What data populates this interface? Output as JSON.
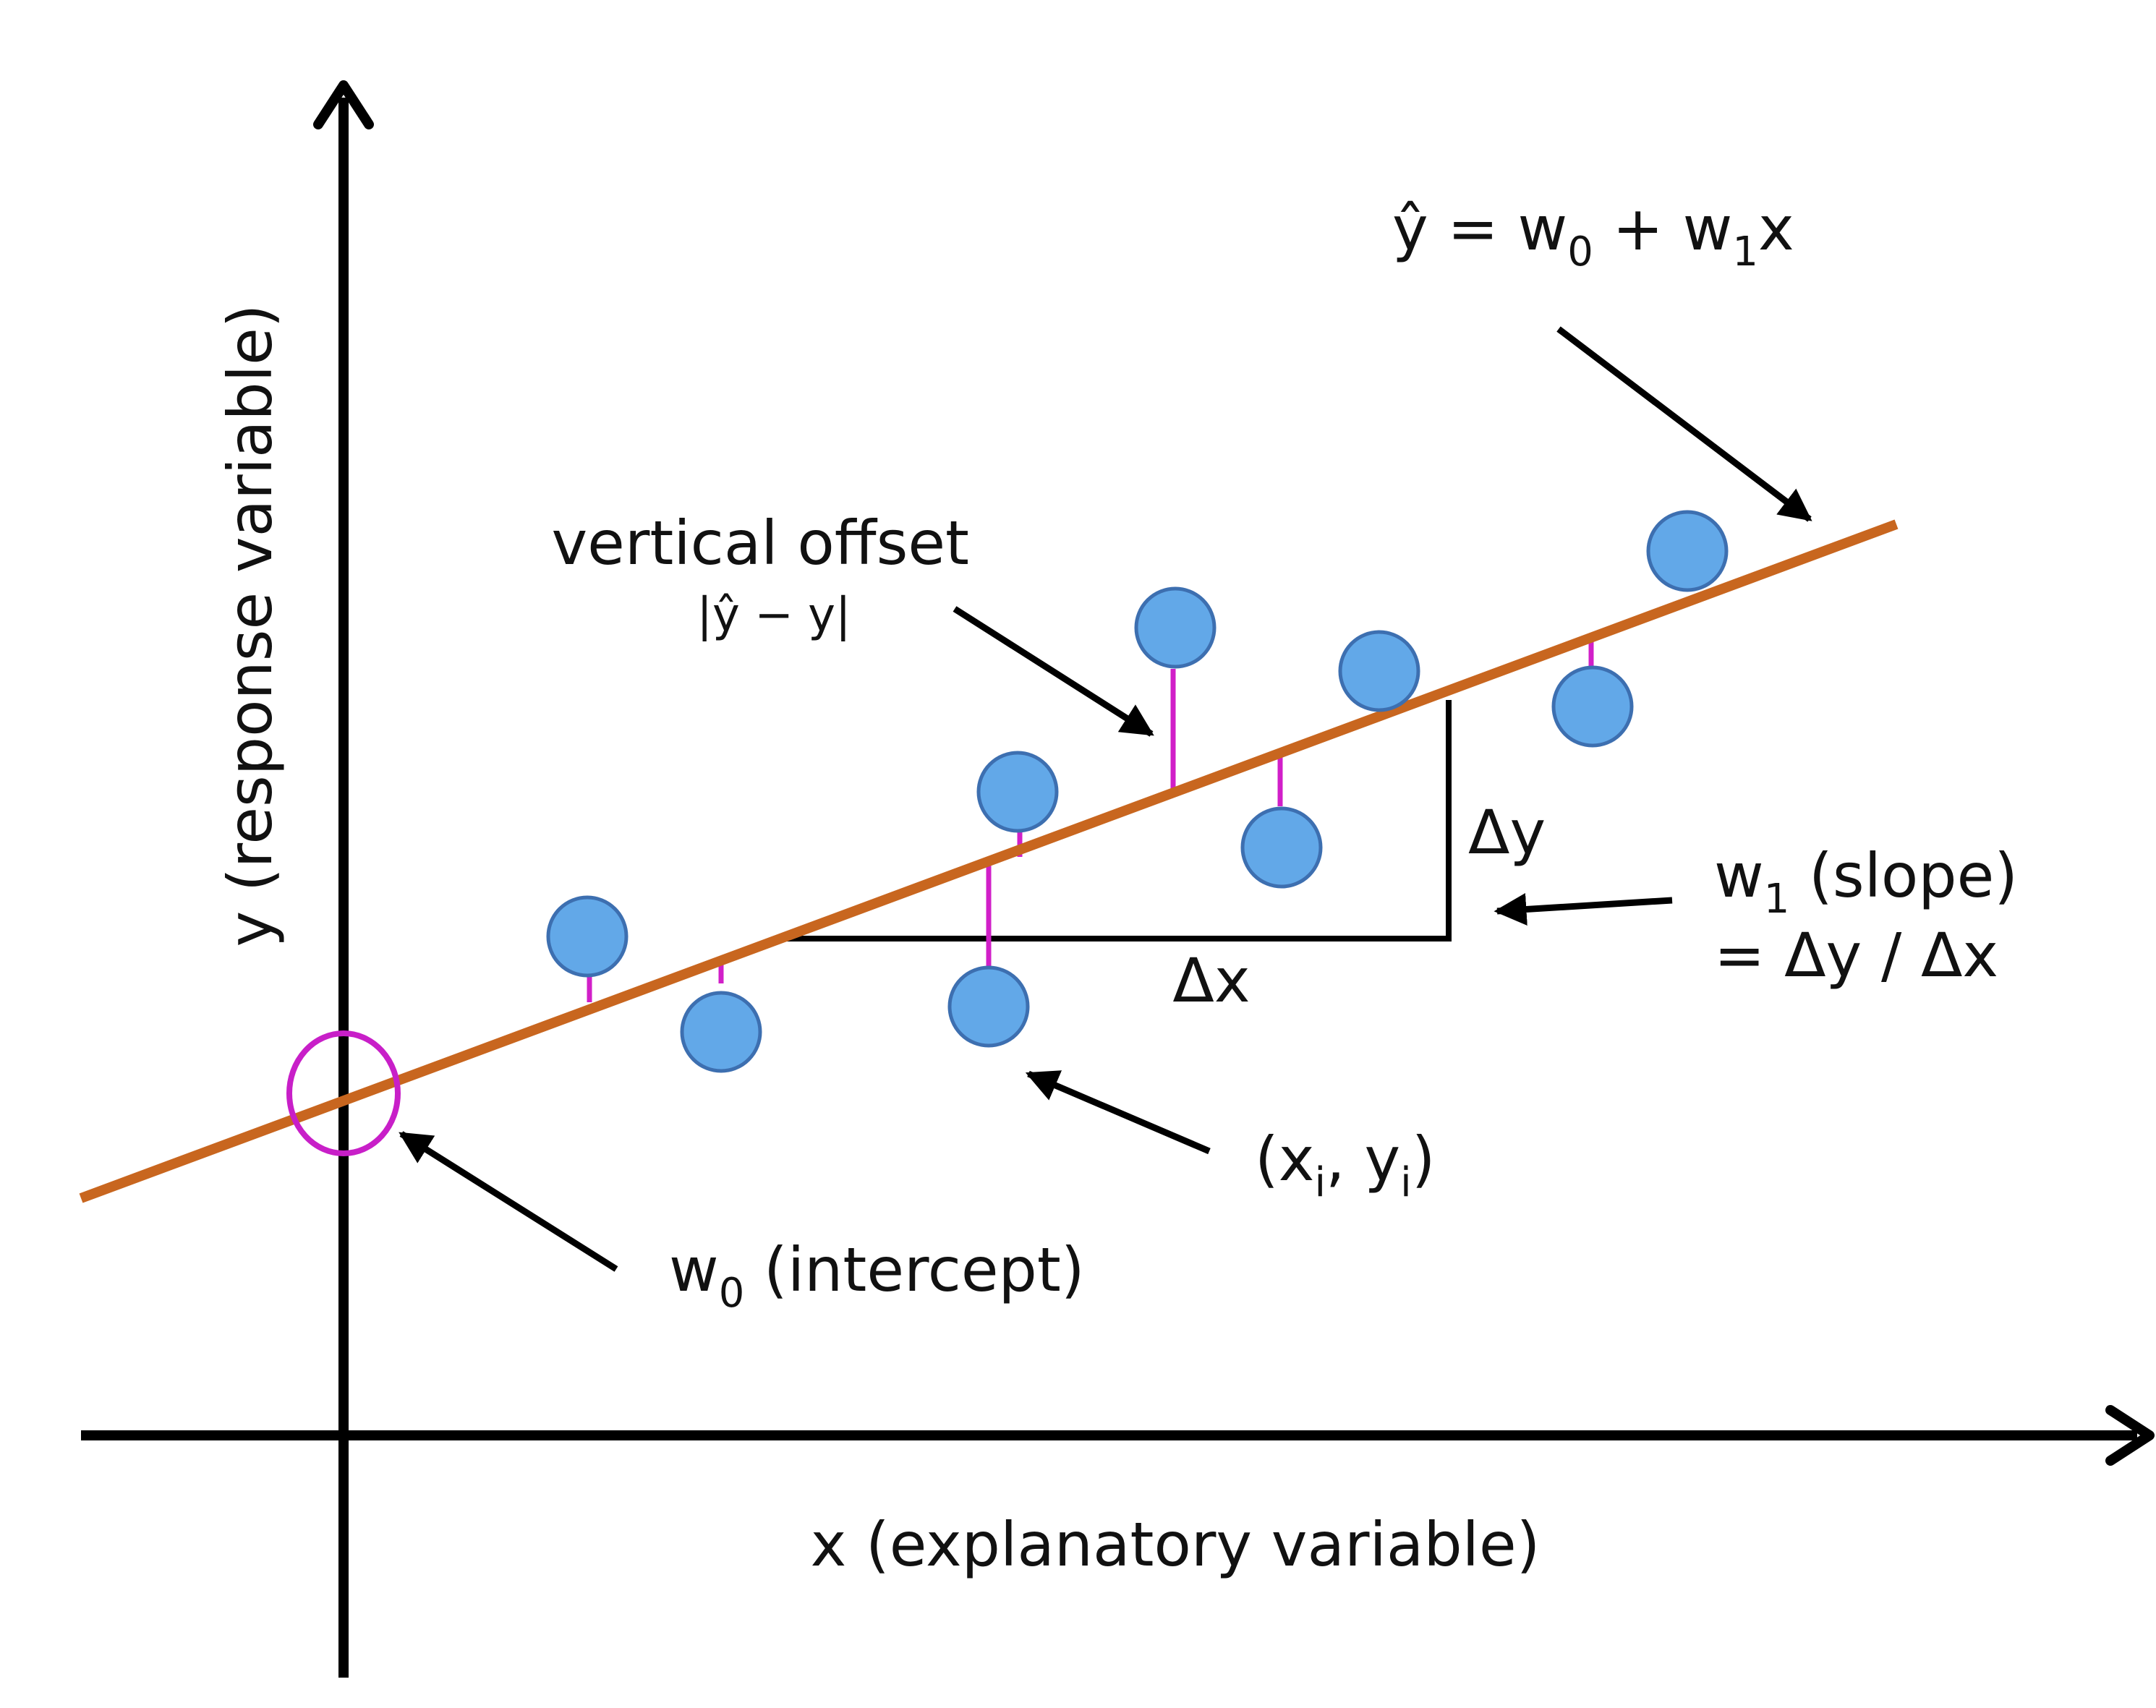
{
  "colors": {
    "axis": "#000000",
    "regression_line": "#c8661f",
    "residual": "#d11fc8",
    "point_fill": "#62a8e8",
    "point_stroke": "#3d6fb0",
    "intercept_marker": "#c81fc8"
  },
  "labels": {
    "equation": {
      "y_hat": "ŷ = w",
      "sub0": "0",
      "plus_w": " + w",
      "sub1": "1",
      "x": "x"
    },
    "vertical_offset": "vertical offset",
    "offset_formula": "|ŷ − y|",
    "delta_y": "Δy",
    "delta_x": "Δx",
    "slope_line1_w": "w",
    "slope_line1_sub": "1",
    "slope_line1_rest": " (slope)",
    "slope_line2": "= Δy / Δx",
    "point": {
      "open": "(x",
      "sub_i1": "i",
      "mid": ", y",
      "sub_i2": "i",
      "close": ")"
    },
    "intercept": {
      "w": "w",
      "sub": "0",
      "rest": " (intercept)"
    },
    "x_axis": "x (explanatory variable)",
    "y_axis": "y (response variable)"
  },
  "icons": {
    "data_point": "filled-circle-icon",
    "intercept_marker": "ellipse-outline-icon",
    "callout": "arrow-icon"
  }
}
